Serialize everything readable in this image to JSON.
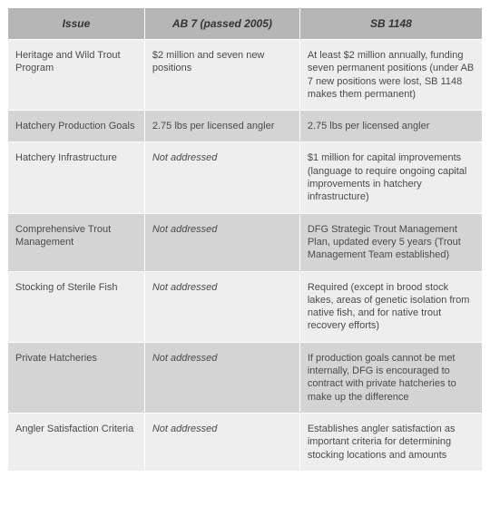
{
  "table": {
    "header_bg": "#b6b6b6",
    "row_bg_alt": [
      "#eeeeee",
      "#d4d4d4"
    ],
    "columns": [
      {
        "key": "issue",
        "label": "Issue"
      },
      {
        "key": "ab7",
        "label": "AB 7 (passed 2005)"
      },
      {
        "key": "sb1148",
        "label": "SB 1148"
      }
    ],
    "rows": [
      {
        "issue": "Heritage and Wild Trout Program",
        "ab7": "$2 million and seven new positions",
        "sb1148": "At least $2 million annually, funding seven permanent positions (under AB 7 new positions were lost, SB 1148 makes them permanent)"
      },
      {
        "issue": "Hatchery Production Goals",
        "ab7": "2.75 lbs per licensed angler",
        "sb1148": "2.75 lbs per licensed angler"
      },
      {
        "issue": "Hatchery Infrastructure",
        "ab7": "Not addressed",
        "ab7_italic": true,
        "sb1148": "$1 million for capital improvements (language to require ongoing capital improvements in hatchery infrastructure)"
      },
      {
        "issue": "Comprehensive Trout Management",
        "ab7": "Not addressed",
        "ab7_italic": true,
        "sb1148": "DFG Strategic Trout Management Plan, updated every 5 years (Trout Management Team established)"
      },
      {
        "issue": "Stocking of Sterile Fish",
        "ab7": "Not addressed",
        "ab7_italic": true,
        "sb1148": "Required (except in brood stock lakes, areas of genetic isolation from native fish, and for native trout recovery efforts)"
      },
      {
        "issue": "Private Hatcheries",
        "ab7": "Not addressed",
        "ab7_italic": true,
        "sb1148": "If production goals cannot be met internally, DFG is encouraged to contract with private hatcheries to make up the difference"
      },
      {
        "issue": "Angler Satisfaction Criteria",
        "ab7": "Not addressed",
        "ab7_italic": true,
        "sb1148": "Establishes angler satisfaction as important criteria for determining stocking locations and amounts"
      }
    ]
  }
}
